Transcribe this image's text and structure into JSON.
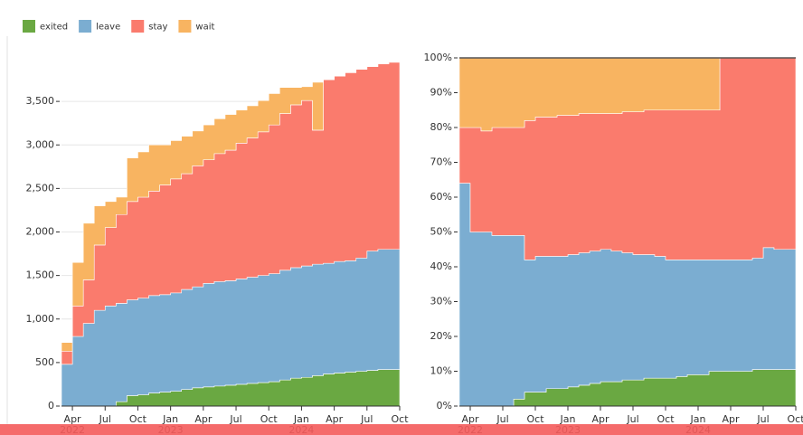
{
  "chart_data": [
    {
      "type": "stacked-area",
      "x": [
        "2022-03",
        "2022-04",
        "2022-05",
        "2022-06",
        "2022-07",
        "2022-08",
        "2022-09",
        "2022-10",
        "2022-11",
        "2022-12",
        "2023-01",
        "2023-02",
        "2023-03",
        "2023-04",
        "2023-05",
        "2023-06",
        "2023-07",
        "2023-08",
        "2023-09",
        "2023-10",
        "2023-11",
        "2023-12",
        "2024-01",
        "2024-02",
        "2024-03",
        "2024-04",
        "2024-05",
        "2024-06",
        "2024-07",
        "2024-08",
        "2024-09",
        "2024-10"
      ],
      "xlim": [
        "2022-03",
        "2024-10"
      ],
      "xticks": [
        {
          "value": "2022-04",
          "label": "Apr"
        },
        {
          "value": "2022-07",
          "label": "Jul"
        },
        {
          "value": "2022-10",
          "label": "Oct"
        },
        {
          "value": "2023-01",
          "label": "Jan"
        },
        {
          "value": "2023-04",
          "label": "Apr"
        },
        {
          "value": "2023-07",
          "label": "Jul"
        },
        {
          "value": "2023-10",
          "label": "Oct"
        },
        {
          "value": "2024-01",
          "label": "Jan"
        },
        {
          "value": "2024-04",
          "label": "Apr"
        },
        {
          "value": "2024-07",
          "label": "Jul"
        },
        {
          "value": "2024-10",
          "label": "Oct"
        }
      ],
      "year_labels": [
        {
          "value": "2022-04",
          "label": "2022"
        },
        {
          "value": "2023-01",
          "label": "2023"
        },
        {
          "value": "2024-01",
          "label": "2024"
        }
      ],
      "ylim": [
        0,
        4000
      ],
      "yticks": [
        0,
        {
          "value": 500,
          "label": "500"
        },
        {
          "value": 1000,
          "label": "1,000"
        },
        {
          "value": 1500,
          "label": "1,500"
        },
        {
          "value": 2000,
          "label": "2,000"
        },
        {
          "value": 2500,
          "label": "2,500"
        },
        {
          "value": 3000,
          "label": "3,000"
        },
        {
          "value": 3500,
          "label": "3,500"
        }
      ],
      "grid": true,
      "series": [
        {
          "name": "exited",
          "color": "#6aa842",
          "values": [
            0,
            0,
            0,
            0,
            0,
            50,
            120,
            130,
            150,
            160,
            170,
            190,
            210,
            220,
            230,
            240,
            250,
            260,
            270,
            280,
            300,
            320,
            330,
            350,
            370,
            380,
            390,
            400,
            410,
            420,
            420,
            420
          ]
        },
        {
          "name": "leave",
          "color": "#7badd1",
          "values": [
            480,
            800,
            950,
            1100,
            1150,
            1130,
            1100,
            1110,
            1120,
            1120,
            1130,
            1150,
            1160,
            1190,
            1200,
            1200,
            1210,
            1220,
            1230,
            1240,
            1260,
            1270,
            1280,
            1280,
            1270,
            1280,
            1280,
            1300,
            1370,
            1380,
            1380,
            1380
          ]
        },
        {
          "name": "stay",
          "color": "#fa7b6d",
          "values": [
            150,
            350,
            500,
            750,
            900,
            1020,
            1130,
            1160,
            1200,
            1260,
            1310,
            1330,
            1390,
            1420,
            1470,
            1500,
            1560,
            1600,
            1650,
            1710,
            1800,
            1870,
            1900,
            1540,
            2110,
            2130,
            2160,
            2170,
            2120,
            2130,
            2150,
            2160
          ]
        },
        {
          "name": "wait",
          "color": "#f8b461",
          "values": [
            100,
            500,
            650,
            450,
            300,
            200,
            500,
            520,
            530,
            460,
            440,
            430,
            400,
            400,
            400,
            410,
            380,
            370,
            360,
            360,
            300,
            200,
            160,
            550,
            0,
            0,
            0,
            0,
            0,
            0,
            0,
            0
          ]
        }
      ]
    },
    {
      "type": "stacked-area",
      "x": [
        "2022-03",
        "2022-04",
        "2022-05",
        "2022-06",
        "2022-07",
        "2022-08",
        "2022-09",
        "2022-10",
        "2022-11",
        "2022-12",
        "2023-01",
        "2023-02",
        "2023-03",
        "2023-04",
        "2023-05",
        "2023-06",
        "2023-07",
        "2023-08",
        "2023-09",
        "2023-10",
        "2023-11",
        "2023-12",
        "2024-01",
        "2024-02",
        "2024-03",
        "2024-04",
        "2024-05",
        "2024-06",
        "2024-07",
        "2024-08",
        "2024-09",
        "2024-10"
      ],
      "xlim": [
        "2022-03",
        "2024-10"
      ],
      "xticks": [
        {
          "value": "2022-04",
          "label": "Apr"
        },
        {
          "value": "2022-07",
          "label": "Jul"
        },
        {
          "value": "2022-10",
          "label": "Oct"
        },
        {
          "value": "2023-01",
          "label": "Jan"
        },
        {
          "value": "2023-04",
          "label": "Apr"
        },
        {
          "value": "2023-07",
          "label": "Jul"
        },
        {
          "value": "2023-10",
          "label": "Oct"
        },
        {
          "value": "2024-01",
          "label": "Jan"
        },
        {
          "value": "2024-04",
          "label": "Apr"
        },
        {
          "value": "2024-07",
          "label": "Jul"
        },
        {
          "value": "2024-10",
          "label": "Oct"
        }
      ],
      "year_labels": [
        {
          "value": "2022-04",
          "label": "2022"
        },
        {
          "value": "2023-01",
          "label": "2023"
        },
        {
          "value": "2024-01",
          "label": "2024"
        }
      ],
      "ylim": [
        0,
        100
      ],
      "yticks": [
        {
          "value": 0,
          "label": "0%"
        },
        {
          "value": 10,
          "label": "10%"
        },
        {
          "value": 20,
          "label": "20%"
        },
        {
          "value": 30,
          "label": "30%"
        },
        {
          "value": 40,
          "label": "40%"
        },
        {
          "value": 50,
          "label": "50%"
        },
        {
          "value": 60,
          "label": "60%"
        },
        {
          "value": 70,
          "label": "70%"
        },
        {
          "value": 80,
          "label": "80%"
        },
        {
          "value": 90,
          "label": "90%"
        },
        {
          "value": 100,
          "label": "100%"
        }
      ],
      "grid": false,
      "series": [
        {
          "name": "exited",
          "color": "#6aa842",
          "values": [
            0,
            0,
            0,
            0,
            0,
            2,
            4,
            4,
            5,
            5,
            5.5,
            6,
            6.5,
            7,
            7,
            7.5,
            7.5,
            8,
            8,
            8,
            8.5,
            9,
            9,
            10,
            10,
            10,
            10,
            10.5,
            10.5,
            10.5,
            10.5,
            10.5
          ]
        },
        {
          "name": "leave",
          "color": "#7badd1",
          "values": [
            64,
            50,
            50,
            49,
            49,
            47,
            38,
            39,
            38,
            38,
            38,
            38,
            38,
            38,
            37.5,
            36.5,
            36,
            35.5,
            35,
            34,
            33.5,
            33,
            33,
            32,
            32,
            32,
            32,
            32,
            35,
            34.5,
            34.5,
            34.5
          ]
        },
        {
          "name": "stay",
          "color": "#fa7b6d",
          "values": [
            16,
            30,
            29,
            31,
            31,
            31,
            40,
            40,
            40,
            40.5,
            40,
            40,
            39.5,
            39,
            39.5,
            40.5,
            41,
            41.5,
            42,
            43,
            43,
            43,
            43,
            43,
            58,
            58,
            58,
            57.5,
            54.5,
            55,
            55,
            55
          ]
        },
        {
          "name": "wait",
          "color": "#f8b461",
          "values": [
            20,
            20,
            21,
            20,
            20,
            20,
            18,
            17,
            17,
            16.5,
            16.5,
            16,
            16,
            16,
            16,
            15.5,
            15.5,
            15,
            15,
            15,
            15,
            15,
            15,
            15,
            0,
            0,
            0,
            0,
            0,
            0,
            0,
            0
          ]
        }
      ]
    }
  ]
}
